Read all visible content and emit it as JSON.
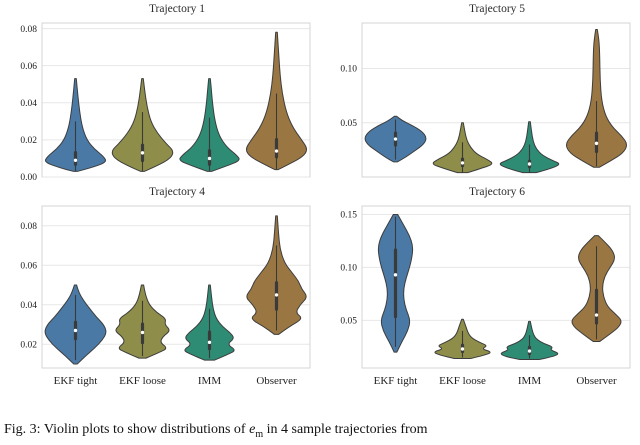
{
  "figure": {
    "caption": {
      "prefix": "Fig. 3: Violin plots to show distributions of ",
      "variable": "e",
      "subscript": "m",
      "suffix": " in 4 sample trajectories from"
    }
  },
  "style": {
    "palette": [
      "#4a79a5",
      "#8e8e4a",
      "#2e8b74",
      "#9a7742"
    ],
    "edge_color": "#3d3d3d",
    "grid_color": "#e7e7e7",
    "frame_color": "#d4d4d4",
    "box_color": "#3a3a3a",
    "median_dot_color": "#ffffff",
    "tick_label_color": "#222222"
  },
  "chart_data": [
    {
      "type": "violin",
      "title": "Trajectory 1",
      "categories": [
        "EKF tight",
        "EKF loose",
        "IMM",
        "Observer"
      ],
      "show_x_labels": false,
      "ylim": [
        0,
        0.083
      ],
      "yticks": [
        0.0,
        0.02,
        0.04,
        0.06,
        0.08
      ],
      "ytick_labels": [
        "0.00",
        "0.02",
        "0.04",
        "0.06",
        "0.08"
      ],
      "violins": [
        {
          "category": "EKF tight",
          "median": 0.009,
          "q1": 0.006,
          "q3": 0.014,
          "whisker_low": 0.003,
          "whisker_high": 0.03,
          "range": [
            0.003,
            0.053
          ],
          "width": 1,
          "profile": [
            [
              0.003,
              0.04
            ],
            [
              0.005,
              0.5
            ],
            [
              0.008,
              1.0
            ],
            [
              0.011,
              0.9
            ],
            [
              0.015,
              0.6
            ],
            [
              0.02,
              0.35
            ],
            [
              0.027,
              0.2
            ],
            [
              0.035,
              0.12
            ],
            [
              0.044,
              0.06
            ],
            [
              0.053,
              0.01
            ]
          ]
        },
        {
          "category": "EKF loose",
          "median": 0.013,
          "q1": 0.008,
          "q3": 0.018,
          "whisker_low": 0.003,
          "whisker_high": 0.035,
          "range": [
            0.003,
            0.053
          ],
          "width": 1,
          "profile": [
            [
              0.003,
              0.04
            ],
            [
              0.006,
              0.45
            ],
            [
              0.01,
              0.9
            ],
            [
              0.014,
              1.0
            ],
            [
              0.018,
              0.75
            ],
            [
              0.024,
              0.45
            ],
            [
              0.03,
              0.25
            ],
            [
              0.038,
              0.13
            ],
            [
              0.046,
              0.06
            ],
            [
              0.053,
              0.01
            ]
          ]
        },
        {
          "category": "IMM",
          "median": 0.01,
          "q1": 0.006,
          "q3": 0.015,
          "whisker_low": 0.003,
          "whisker_high": 0.032,
          "range": [
            0.003,
            0.053
          ],
          "width": 1,
          "profile": [
            [
              0.003,
              0.05
            ],
            [
              0.006,
              0.55
            ],
            [
              0.009,
              1.0
            ],
            [
              0.012,
              0.85
            ],
            [
              0.016,
              0.55
            ],
            [
              0.022,
              0.3
            ],
            [
              0.03,
              0.16
            ],
            [
              0.04,
              0.08
            ],
            [
              0.048,
              0.04
            ],
            [
              0.053,
              0.01
            ]
          ]
        },
        {
          "category": "Observer",
          "median": 0.014,
          "q1": 0.01,
          "q3": 0.021,
          "whisker_low": 0.004,
          "whisker_high": 0.045,
          "range": [
            0.004,
            0.078
          ],
          "width": 1,
          "profile": [
            [
              0.004,
              0.04
            ],
            [
              0.007,
              0.4
            ],
            [
              0.011,
              0.85
            ],
            [
              0.015,
              1.0
            ],
            [
              0.02,
              0.8
            ],
            [
              0.027,
              0.5
            ],
            [
              0.035,
              0.3
            ],
            [
              0.045,
              0.17
            ],
            [
              0.055,
              0.1
            ],
            [
              0.065,
              0.06
            ],
            [
              0.078,
              0.01
            ]
          ]
        }
      ]
    },
    {
      "type": "violin",
      "title": "Trajectory 5",
      "categories": [
        "EKF tight",
        "EKF loose",
        "IMM",
        "Observer"
      ],
      "show_x_labels": false,
      "ylim": [
        0,
        0.142
      ],
      "yticks": [
        0.05,
        0.1
      ],
      "ytick_labels": [
        "0.05",
        "0.10"
      ],
      "violins": [
        {
          "category": "EKF tight",
          "median": 0.035,
          "q1": 0.028,
          "q3": 0.042,
          "whisker_low": 0.016,
          "whisker_high": 0.053,
          "range": [
            0.014,
            0.056
          ],
          "width": 1,
          "profile": [
            [
              0.014,
              0.05
            ],
            [
              0.018,
              0.3
            ],
            [
              0.024,
              0.6
            ],
            [
              0.03,
              0.9
            ],
            [
              0.036,
              1.0
            ],
            [
              0.042,
              0.85
            ],
            [
              0.048,
              0.5
            ],
            [
              0.052,
              0.2
            ],
            [
              0.056,
              0.02
            ]
          ]
        },
        {
          "category": "EKF loose",
          "median": 0.013,
          "q1": 0.009,
          "q3": 0.018,
          "whisker_low": 0.004,
          "whisker_high": 0.032,
          "range": [
            0.004,
            0.05
          ],
          "width": 1,
          "profile": [
            [
              0.004,
              0.15
            ],
            [
              0.008,
              0.6
            ],
            [
              0.012,
              1.0
            ],
            [
              0.016,
              0.8
            ],
            [
              0.021,
              0.45
            ],
            [
              0.027,
              0.25
            ],
            [
              0.034,
              0.12
            ],
            [
              0.042,
              0.06
            ],
            [
              0.05,
              0.01
            ]
          ]
        },
        {
          "category": "IMM",
          "median": 0.012,
          "q1": 0.008,
          "q3": 0.016,
          "whisker_low": 0.004,
          "whisker_high": 0.03,
          "range": [
            0.004,
            0.051
          ],
          "width": 1,
          "profile": [
            [
              0.004,
              0.2
            ],
            [
              0.008,
              0.7
            ],
            [
              0.012,
              1.0
            ],
            [
              0.015,
              0.75
            ],
            [
              0.02,
              0.4
            ],
            [
              0.026,
              0.2
            ],
            [
              0.033,
              0.1
            ],
            [
              0.042,
              0.05
            ],
            [
              0.051,
              0.01
            ]
          ]
        },
        {
          "category": "Observer",
          "median": 0.031,
          "q1": 0.022,
          "q3": 0.042,
          "whisker_low": 0.01,
          "whisker_high": 0.07,
          "range": [
            0.009,
            0.136
          ],
          "width": 1,
          "profile": [
            [
              0.009,
              0.08
            ],
            [
              0.015,
              0.45
            ],
            [
              0.022,
              0.85
            ],
            [
              0.03,
              1.0
            ],
            [
              0.038,
              0.8
            ],
            [
              0.046,
              0.5
            ],
            [
              0.056,
              0.28
            ],
            [
              0.07,
              0.15
            ],
            [
              0.09,
              0.1
            ],
            [
              0.11,
              0.09
            ],
            [
              0.125,
              0.07
            ],
            [
              0.136,
              0.01
            ]
          ]
        }
      ]
    },
    {
      "type": "violin",
      "title": "Trajectory 4",
      "categories": [
        "EKF tight",
        "EKF loose",
        "IMM",
        "Observer"
      ],
      "show_x_labels": true,
      "ylim": [
        0.008,
        0.09
      ],
      "yticks": [
        0.02,
        0.04,
        0.06,
        0.08
      ],
      "ytick_labels": [
        "0.02",
        "0.04",
        "0.06",
        "0.08"
      ],
      "violins": [
        {
          "category": "EKF tight",
          "median": 0.027,
          "q1": 0.022,
          "q3": 0.032,
          "whisker_low": 0.012,
          "whisker_high": 0.045,
          "range": [
            0.01,
            0.05
          ],
          "width": 1,
          "profile": [
            [
              0.01,
              0.04
            ],
            [
              0.014,
              0.3
            ],
            [
              0.018,
              0.6
            ],
            [
              0.022,
              0.85
            ],
            [
              0.026,
              1.0
            ],
            [
              0.03,
              0.9
            ],
            [
              0.034,
              0.65
            ],
            [
              0.038,
              0.45
            ],
            [
              0.042,
              0.25
            ],
            [
              0.046,
              0.1
            ],
            [
              0.05,
              0.02
            ]
          ]
        },
        {
          "category": "EKF loose",
          "median": 0.026,
          "q1": 0.02,
          "q3": 0.031,
          "whisker_low": 0.014,
          "whisker_high": 0.042,
          "range": [
            0.013,
            0.05
          ],
          "width": 1,
          "profile": [
            [
              0.013,
              0.1
            ],
            [
              0.016,
              0.55
            ],
            [
              0.018,
              0.8
            ],
            [
              0.021,
              0.55
            ],
            [
              0.024,
              0.65
            ],
            [
              0.027,
              0.9
            ],
            [
              0.03,
              0.7
            ],
            [
              0.033,
              0.75
            ],
            [
              0.036,
              0.45
            ],
            [
              0.04,
              0.2
            ],
            [
              0.045,
              0.08
            ],
            [
              0.05,
              0.02
            ]
          ]
        },
        {
          "category": "IMM",
          "median": 0.021,
          "q1": 0.017,
          "q3": 0.027,
          "whisker_low": 0.013,
          "whisker_high": 0.038,
          "range": [
            0.012,
            0.05
          ],
          "width": 1,
          "profile": [
            [
              0.012,
              0.15
            ],
            [
              0.015,
              0.6
            ],
            [
              0.017,
              0.85
            ],
            [
              0.02,
              0.55
            ],
            [
              0.023,
              0.8
            ],
            [
              0.026,
              0.65
            ],
            [
              0.029,
              0.4
            ],
            [
              0.033,
              0.2
            ],
            [
              0.038,
              0.1
            ],
            [
              0.044,
              0.05
            ],
            [
              0.05,
              0.01
            ]
          ]
        },
        {
          "category": "Observer",
          "median": 0.045,
          "q1": 0.037,
          "q3": 0.052,
          "whisker_low": 0.027,
          "whisker_high": 0.07,
          "range": [
            0.025,
            0.085
          ],
          "width": 1,
          "profile": [
            [
              0.025,
              0.05
            ],
            [
              0.029,
              0.4
            ],
            [
              0.033,
              0.85
            ],
            [
              0.036,
              0.6
            ],
            [
              0.04,
              0.75
            ],
            [
              0.044,
              1.0
            ],
            [
              0.048,
              0.8
            ],
            [
              0.052,
              0.7
            ],
            [
              0.056,
              0.5
            ],
            [
              0.061,
              0.25
            ],
            [
              0.068,
              0.1
            ],
            [
              0.076,
              0.05
            ],
            [
              0.085,
              0.01
            ]
          ]
        }
      ]
    },
    {
      "type": "violin",
      "title": "Trajectory 6",
      "categories": [
        "EKF tight",
        "EKF loose",
        "IMM",
        "Observer"
      ],
      "show_x_labels": true,
      "ylim": [
        0.005,
        0.158
      ],
      "yticks": [
        0.05,
        0.1,
        0.15
      ],
      "ytick_labels": [
        "0.05",
        "0.10",
        "0.15"
      ],
      "violins": [
        {
          "category": "EKF tight",
          "median": 0.093,
          "q1": 0.052,
          "q3": 0.118,
          "whisker_low": 0.025,
          "whisker_high": 0.148,
          "range": [
            0.02,
            0.15
          ],
          "width": 0.55,
          "profile": [
            [
              0.02,
              0.05
            ],
            [
              0.03,
              0.35
            ],
            [
              0.04,
              0.7
            ],
            [
              0.05,
              0.85
            ],
            [
              0.06,
              0.6
            ],
            [
              0.07,
              0.45
            ],
            [
              0.08,
              0.45
            ],
            [
              0.09,
              0.6
            ],
            [
              0.1,
              0.8
            ],
            [
              0.11,
              0.95
            ],
            [
              0.12,
              1.0
            ],
            [
              0.13,
              0.8
            ],
            [
              0.14,
              0.45
            ],
            [
              0.15,
              0.1
            ]
          ]
        },
        {
          "category": "EKF loose",
          "median": 0.023,
          "q1": 0.019,
          "q3": 0.028,
          "whisker_low": 0.015,
          "whisker_high": 0.04,
          "range": [
            0.014,
            0.051
          ],
          "width": 1,
          "profile": [
            [
              0.014,
              0.25
            ],
            [
              0.017,
              0.7
            ],
            [
              0.02,
              0.95
            ],
            [
              0.023,
              0.6
            ],
            [
              0.026,
              0.8
            ],
            [
              0.029,
              0.55
            ],
            [
              0.033,
              0.3
            ],
            [
              0.037,
              0.18
            ],
            [
              0.042,
              0.12
            ],
            [
              0.047,
              0.06
            ],
            [
              0.051,
              0.01
            ]
          ]
        },
        {
          "category": "IMM",
          "median": 0.021,
          "q1": 0.017,
          "q3": 0.026,
          "whisker_low": 0.014,
          "whisker_high": 0.036,
          "range": [
            0.013,
            0.049
          ],
          "width": 1,
          "profile": [
            [
              0.013,
              0.3
            ],
            [
              0.016,
              0.8
            ],
            [
              0.019,
              0.95
            ],
            [
              0.022,
              0.65
            ],
            [
              0.025,
              0.75
            ],
            [
              0.028,
              0.45
            ],
            [
              0.032,
              0.22
            ],
            [
              0.036,
              0.12
            ],
            [
              0.042,
              0.06
            ],
            [
              0.049,
              0.01
            ]
          ]
        },
        {
          "category": "Observer",
          "median": 0.055,
          "q1": 0.046,
          "q3": 0.08,
          "whisker_low": 0.032,
          "whisker_high": 0.12,
          "range": [
            0.03,
            0.13
          ],
          "width": 0.85,
          "profile": [
            [
              0.03,
              0.1
            ],
            [
              0.037,
              0.5
            ],
            [
              0.044,
              0.85
            ],
            [
              0.05,
              0.95
            ],
            [
              0.056,
              0.7
            ],
            [
              0.063,
              0.4
            ],
            [
              0.072,
              0.25
            ],
            [
              0.082,
              0.2
            ],
            [
              0.092,
              0.3
            ],
            [
              0.1,
              0.5
            ],
            [
              0.108,
              0.7
            ],
            [
              0.116,
              0.6
            ],
            [
              0.124,
              0.3
            ],
            [
              0.13,
              0.05
            ]
          ]
        }
      ]
    }
  ]
}
